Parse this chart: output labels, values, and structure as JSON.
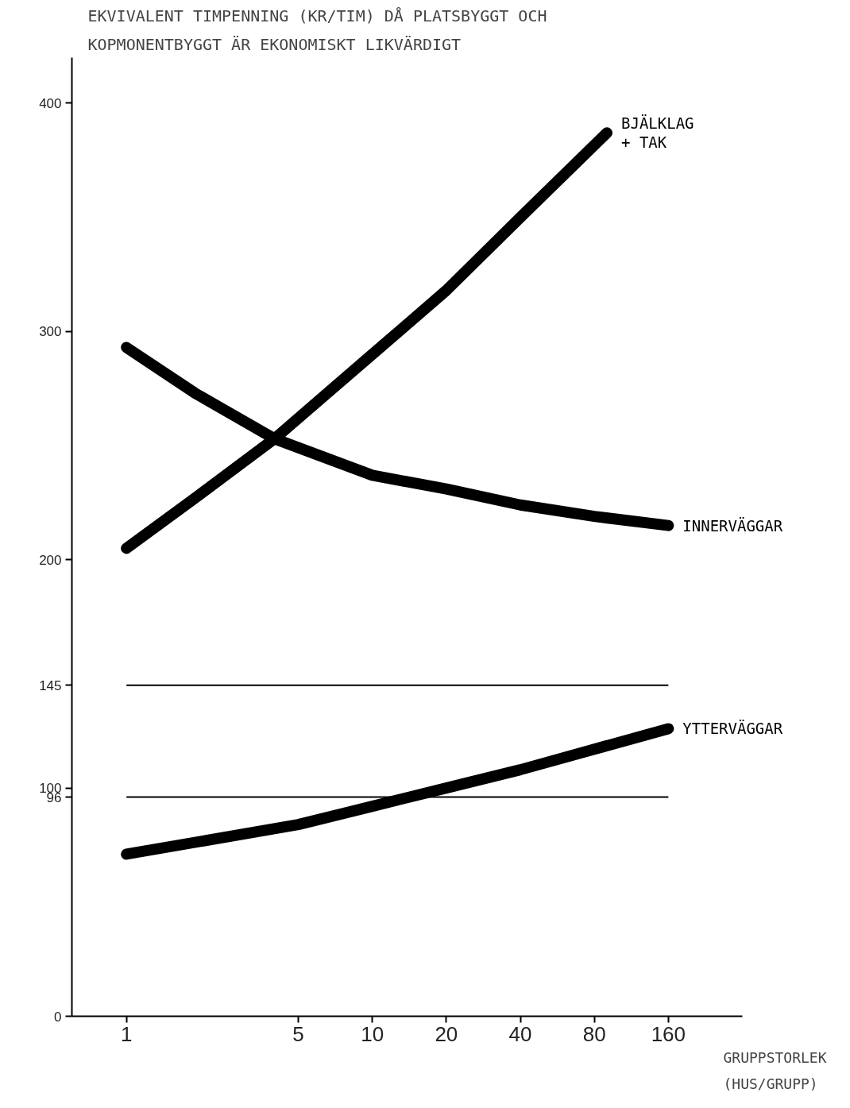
{
  "chart_data": {
    "type": "line",
    "title": "EKVIVALENT TIMPENNING (KR/TIM) DÅ PLATSBYGGT OCH\nKOPMONENTBYGGT ÄR EKONOMISKT LIKVÄRDIGT",
    "xlabel": "GRUPPSTORLEK\n(HUS/GRUPP)",
    "log": "x",
    "grid": false,
    "legend": false,
    "xlim": [
      0.6,
      320
    ],
    "ylim": [
      0,
      420
    ],
    "xticks": [
      1,
      5,
      10,
      20,
      40,
      80,
      160
    ],
    "yticks": [
      0,
      96,
      100,
      145,
      200,
      300,
      400
    ],
    "series": [
      {
        "name": "BJÄLKLAG\n+ TAK",
        "color": "#000000",
        "x": [
          1,
          1.9,
          4,
          10,
          20,
          40,
          90
        ],
        "values": [
          205,
          227,
          253,
          290,
          318,
          350,
          387
        ]
      },
      {
        "name": "INNERVÄGGAR",
        "color": "#000000",
        "x": [
          1,
          1.9,
          4,
          10,
          20,
          40,
          80,
          160
        ],
        "values": [
          293,
          273,
          253,
          237,
          231,
          224,
          219,
          215
        ]
      },
      {
        "name": "YTTERVÄGGAR",
        "color": "#000000",
        "x": [
          1,
          5,
          10,
          20,
          40,
          80,
          160
        ],
        "values": [
          71,
          84,
          92,
          100,
          108,
          117,
          126
        ]
      }
    ],
    "ref_lines": [
      {
        "axis": "y",
        "value": 145,
        "color": "#000000"
      },
      {
        "axis": "y",
        "value": 96,
        "color": "#000000"
      }
    ]
  }
}
